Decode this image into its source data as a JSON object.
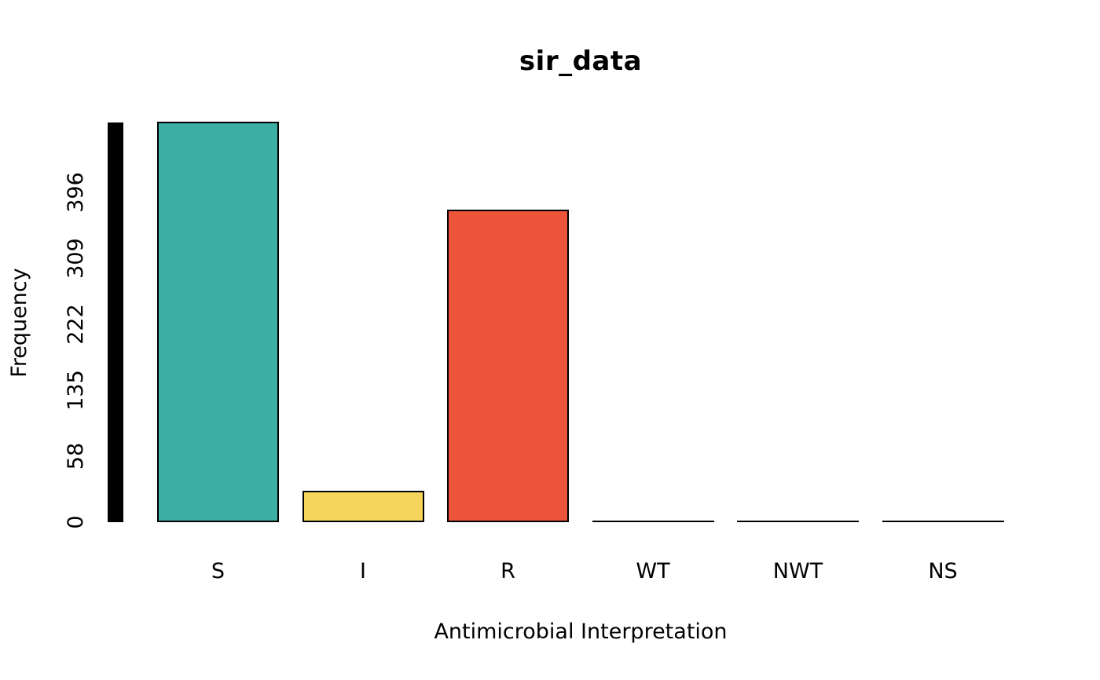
{
  "chart_data": {
    "type": "bar",
    "title": "sir_data",
    "xlabel": "Antimicrobial Interpretation",
    "ylabel": "Frequency",
    "categories": [
      "S",
      "I",
      "R",
      "WT",
      "NWT",
      "NS"
    ],
    "values": [
      486,
      38,
      379,
      0,
      0,
      0
    ],
    "bar_colors": [
      "#3CAEA3",
      "#F6D55C",
      "#ED553B",
      "#000000",
      "#000000",
      "#000000"
    ],
    "bar_border_color": "#000000",
    "y_tick_labels": [
      "0",
      "58",
      "135",
      "222",
      "309",
      "396"
    ],
    "ylim": [
      0,
      486
    ],
    "grid": false,
    "legend": null,
    "axis_bar_color": "#000000",
    "background_color": "#ffffff"
  }
}
